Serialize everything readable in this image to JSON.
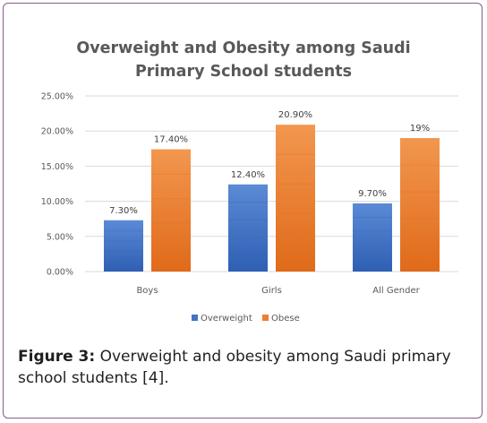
{
  "chart_data": {
    "type": "bar",
    "title_lines": [
      "Overweight and Obesity among Saudi",
      "Primary School students"
    ],
    "categories": [
      "Boys",
      "Girls",
      "All Gender"
    ],
    "series": [
      {
        "name": "Overweight",
        "values": [
          7.3,
          12.4,
          9.7
        ],
        "labels": [
          "7.30%",
          "12.40%",
          "9.70%"
        ],
        "color": "#4472c4"
      },
      {
        "name": "Obese",
        "values": [
          17.4,
          20.9,
          19.0
        ],
        "labels": [
          "17.40%",
          "20.90%",
          "19%"
        ],
        "color": "#ed7d31"
      }
    ],
    "ylim": [
      0,
      25
    ],
    "yticks": [
      "0.00%",
      "5.00%",
      "10.00%",
      "15.00%",
      "20.00%",
      "25.00%"
    ],
    "grid": true,
    "legend_position": "bottom"
  },
  "caption": {
    "lead": "Figure 3:",
    "text": " Overweight and obesity among Saudi primary school students [4]."
  }
}
